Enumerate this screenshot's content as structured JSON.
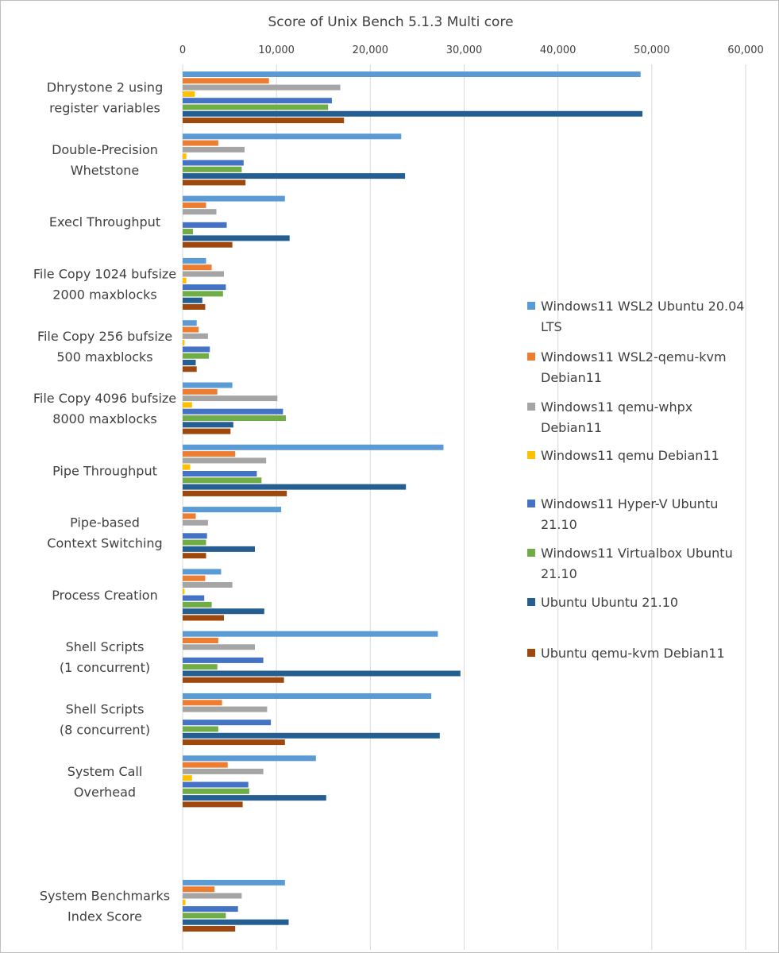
{
  "chart_data": {
    "type": "bar",
    "orientation": "horizontal",
    "title": "Score of Unix Bench 5.1.3 Multi core",
    "xlabel": "",
    "ylabel": "",
    "xlim": [
      0,
      62000
    ],
    "xticks": [
      0,
      10000,
      20000,
      30000,
      40000,
      50000,
      60000
    ],
    "xtick_labels": [
      "0",
      "10,000",
      "20,000",
      "30,000",
      "40,000",
      "50,000",
      "60,000"
    ],
    "grid": true,
    "legend_position": "right",
    "categories": [
      [
        "Dhrystone 2 using",
        "register variables"
      ],
      [
        "Double-Precision",
        "Whetstone"
      ],
      [
        "Execl Throughput"
      ],
      [
        "File Copy 1024 bufsize",
        "2000 maxblocks"
      ],
      [
        "File Copy 256 bufsize",
        "500 maxblocks"
      ],
      [
        "File Copy 4096 bufsize",
        "8000 maxblocks"
      ],
      [
        "Pipe Throughput"
      ],
      [
        "Pipe-based",
        "Context Switching"
      ],
      [
        "Process Creation"
      ],
      [
        "Shell Scripts",
        "(1 concurrent)"
      ],
      [
        "Shell Scripts",
        "(8 concurrent)"
      ],
      [
        "System Call",
        "Overhead"
      ],
      [],
      [
        "System Benchmarks",
        "Index Score"
      ]
    ],
    "series": [
      {
        "name": "Windows11 WSL2 Ubuntu 20.04 LTS",
        "legend_lines": [
          "Windows11 WSL2 Ubuntu 20.04",
          "LTS"
        ],
        "color": "#5b9bd5",
        "values": [
          48800,
          23300,
          10900,
          2500,
          1500,
          5300,
          27800,
          10500,
          4100,
          27200,
          26500,
          14200,
          null,
          10900
        ]
      },
      {
        "name": "Windows11 WSL2-qemu-kvm Debian11",
        "legend_lines": [
          "Windows11 WSL2-qemu-kvm",
          "Debian11"
        ],
        "color": "#ed7d31",
        "values": [
          9200,
          3800,
          2500,
          3100,
          1700,
          3700,
          5600,
          1400,
          2400,
          3800,
          4200,
          4800,
          null,
          3400
        ]
      },
      {
        "name": "Windows11 qemu-whpx Debian11",
        "legend_lines": [
          "Windows11 qemu-whpx",
          "Debian11"
        ],
        "color": "#a5a5a5",
        "values": [
          16800,
          6600,
          3600,
          4400,
          2700,
          10100,
          8900,
          2700,
          5300,
          7700,
          9000,
          8600,
          null,
          6300
        ]
      },
      {
        "name": "Windows11 qemu Debian11",
        "legend_lines": [
          "Windows11 qemu Debian11"
        ],
        "color": "#ffc000",
        "values": [
          1300,
          400,
          0,
          400,
          200,
          1000,
          800,
          0,
          200,
          0,
          0,
          1000,
          null,
          300
        ]
      },
      {
        "name": "Windows11 Hyper-V Ubuntu 21.10",
        "legend_lines": [
          "Windows11 Hyper-V Ubuntu",
          "21.10"
        ],
        "color": "#4472c4",
        "values": [
          15900,
          6500,
          4700,
          4600,
          2900,
          10700,
          7900,
          2600,
          2300,
          8600,
          9400,
          7000,
          null,
          5900
        ]
      },
      {
        "name": "Windows11 Virtualbox Ubuntu 21.10",
        "legend_lines": [
          "Windows11 Virtualbox Ubuntu",
          "21.10"
        ],
        "color": "#70ad47",
        "values": [
          15500,
          6300,
          1100,
          4300,
          2800,
          11000,
          8400,
          2500,
          3100,
          3700,
          3800,
          7100,
          null,
          4600
        ]
      },
      {
        "name": "Ubuntu Ubuntu 21.10",
        "legend_lines": [
          "Ubuntu Ubuntu 21.10"
        ],
        "color": "#255e91",
        "values": [
          49000,
          23700,
          11400,
          2100,
          1400,
          5400,
          23800,
          7700,
          8700,
          29600,
          27400,
          15300,
          null,
          11300
        ]
      },
      {
        "name": "Ubuntu qemu-kvm Debian11",
        "legend_lines": [
          "Ubuntu qemu-kvm Debian11"
        ],
        "color": "#9e480e",
        "values": [
          17200,
          6700,
          5300,
          2400,
          1500,
          5100,
          11100,
          2500,
          4400,
          10800,
          10900,
          6400,
          null,
          5600
        ]
      }
    ]
  }
}
